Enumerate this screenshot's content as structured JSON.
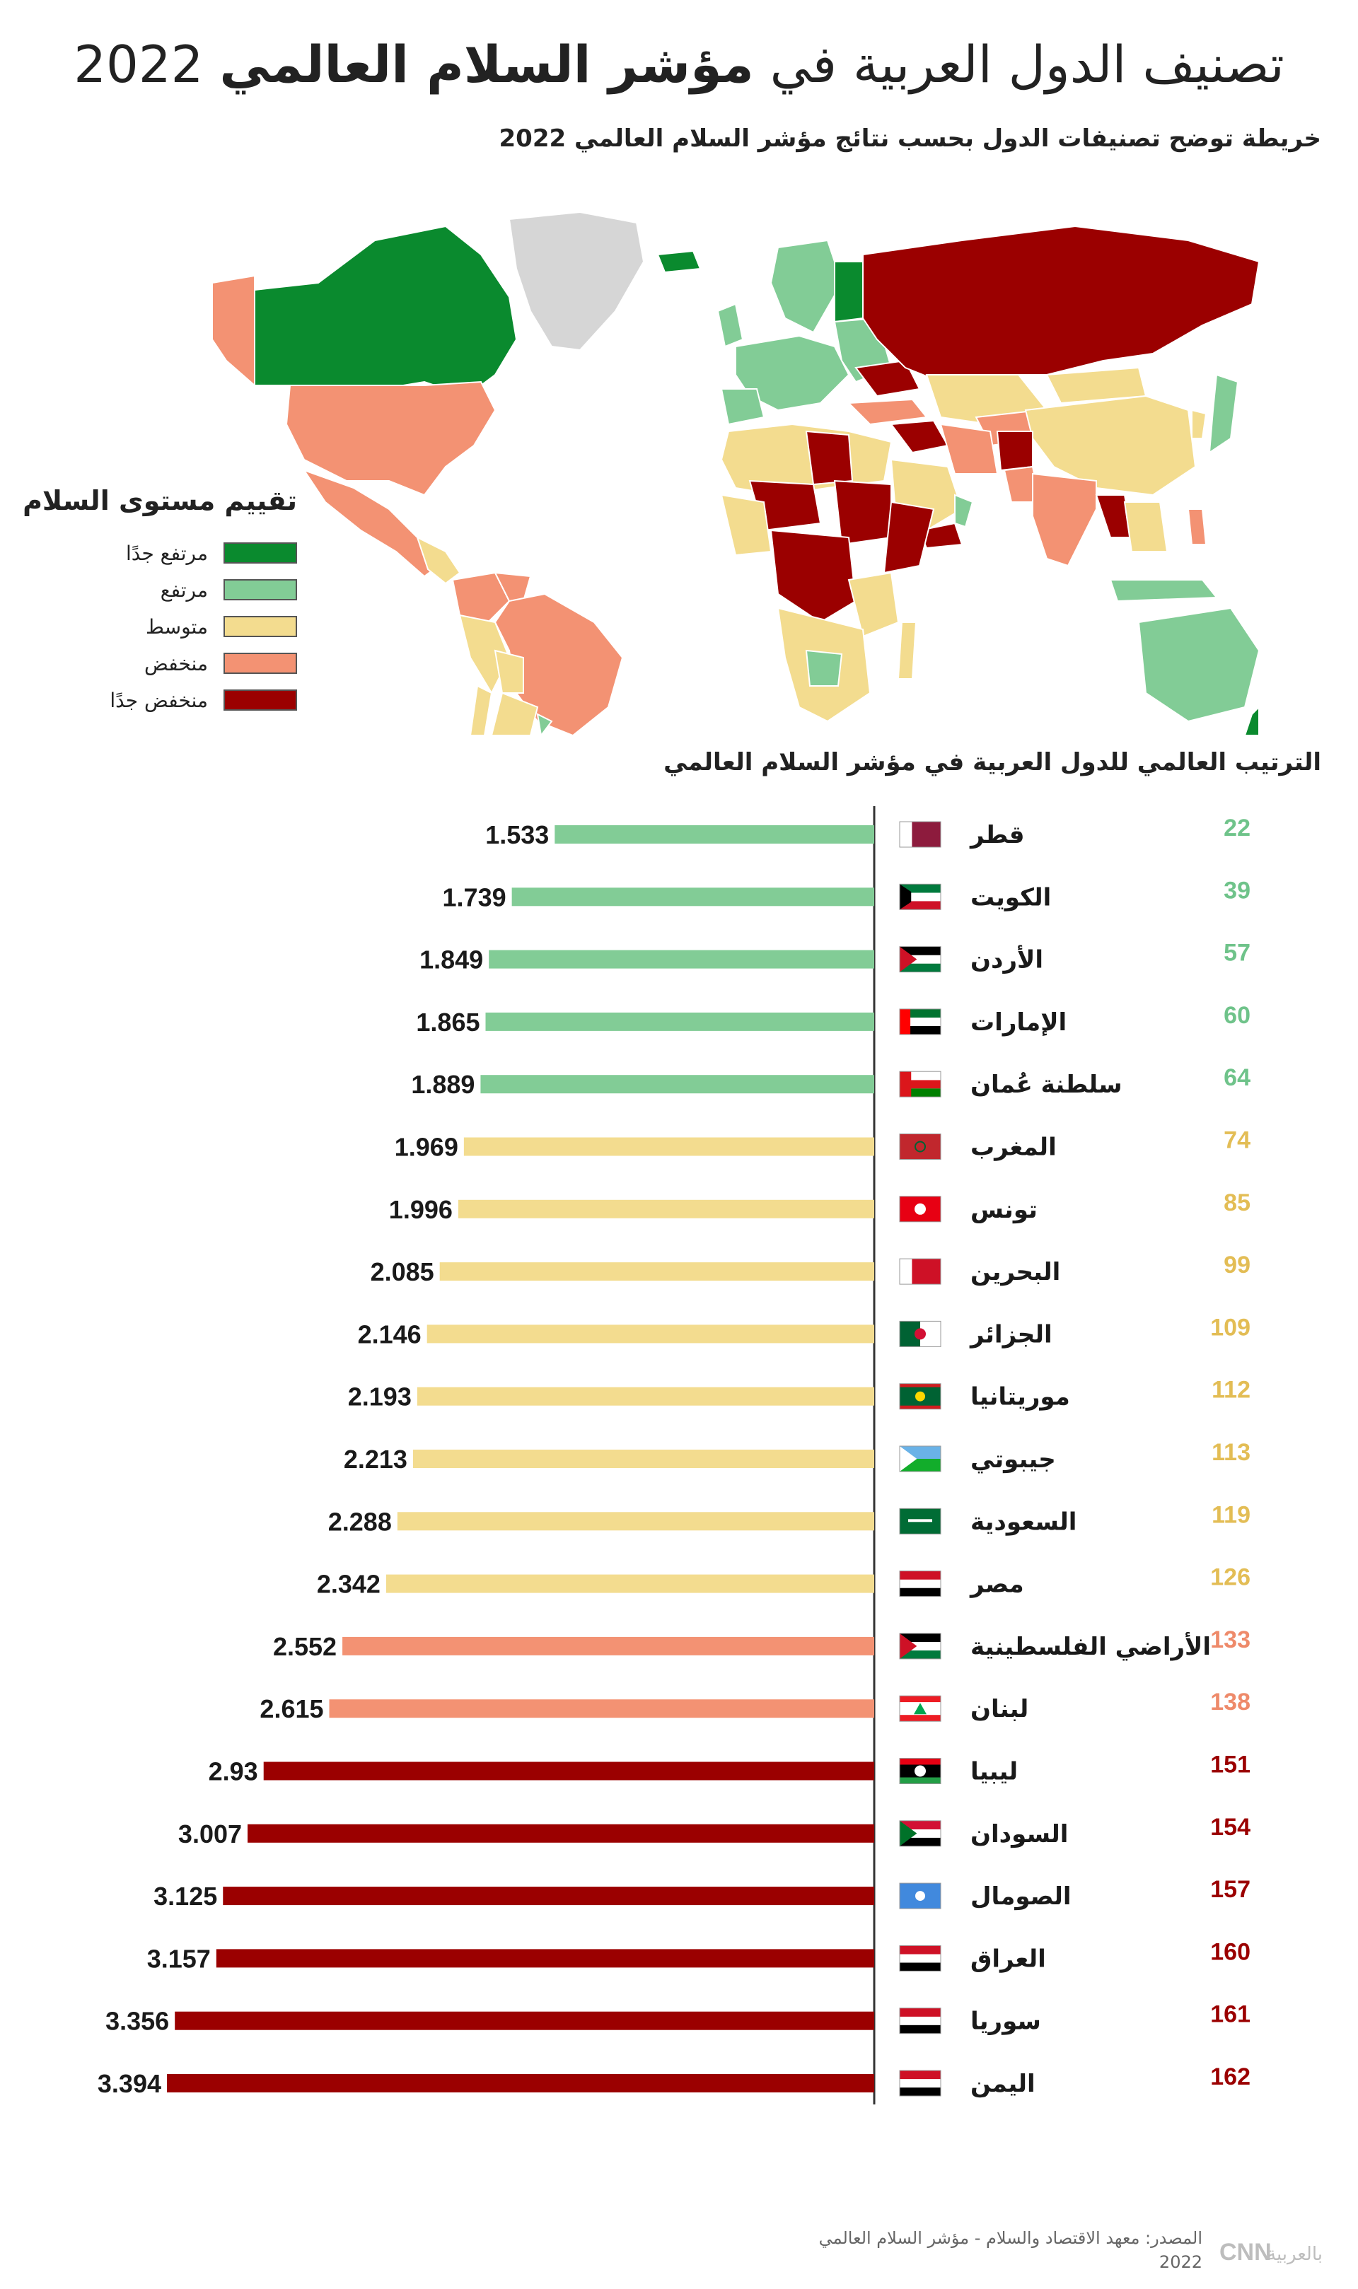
{
  "title": {
    "part1": "تصنيف الدول العربية في",
    "part2": "مؤشر السلام العالمي",
    "year": "2022"
  },
  "map_subtitle": "خريطة توضح تصنيفات الدول بحسب نتائج مؤشر السلام العالمي 2022",
  "legend": {
    "title": "تقييم مستوى السلام",
    "items": [
      {
        "label": "مرتفع جدًا",
        "color": "#0a8a2e"
      },
      {
        "label": "مرتفع",
        "color": "#82cc96"
      },
      {
        "label": "متوسط",
        "color": "#f3dc8f"
      },
      {
        "label": "منخفض",
        "color": "#f39273"
      },
      {
        "label": "منخفض جدًا",
        "color": "#9b0000"
      }
    ]
  },
  "ranking_title": "الترتيب العالمي للدول العربية في مؤشر السلام العالمي",
  "chart_data": {
    "type": "bar",
    "orientation": "horizontal",
    "categories": [
      "قطر",
      "الكويت",
      "الأردن",
      "الإمارات",
      "سلطنة عُمان",
      "المغرب",
      "تونس",
      "البحرين",
      "الجزائر",
      "موريتانيا",
      "جيبوتي",
      "السعودية",
      "مصر",
      "الأراضي الفلسطينية",
      "لبنان",
      "ليبيا",
      "السودان",
      "الصومال",
      "العراق",
      "سوريا",
      "اليمن"
    ],
    "values": [
      1.533,
      1.739,
      1.849,
      1.865,
      1.889,
      1.969,
      1.996,
      2.085,
      2.146,
      2.193,
      2.213,
      2.288,
      2.342,
      2.552,
      2.615,
      2.93,
      3.007,
      3.125,
      3.157,
      3.356,
      3.394
    ],
    "value_labels": [
      "1.533",
      "1.739",
      "1.849",
      "1.865",
      "1.889",
      "1.969",
      "1.996",
      "2.085",
      "2.146",
      "2.193",
      "2.213",
      "2.288",
      "2.342",
      "2.552",
      "2.615",
      "2.93",
      "3.007",
      "3.125",
      "3.157",
      "3.356",
      "3.394"
    ],
    "ranks": [
      "22",
      "39",
      "57",
      "60",
      "64",
      "74",
      "85",
      "99",
      "109",
      "112",
      "113",
      "119",
      "126",
      "133",
      "138",
      "151",
      "154",
      "157",
      "160",
      "161",
      "162"
    ],
    "levels": [
      "high",
      "high",
      "high",
      "high",
      "high",
      "medium",
      "medium",
      "medium",
      "medium",
      "medium",
      "medium",
      "medium",
      "medium",
      "low",
      "low",
      "very-low",
      "very-low",
      "very-low",
      "very-low",
      "very-low",
      "very-low"
    ],
    "flags": [
      "qatar",
      "kuwait",
      "jordan",
      "uae",
      "oman",
      "morocco",
      "tunisia",
      "bahrain",
      "algeria",
      "mauritania",
      "djibouti",
      "saudi",
      "egypt",
      "palestine",
      "lebanon",
      "libya",
      "sudan",
      "somalia",
      "iraq",
      "syria",
      "yemen"
    ],
    "level_colors": {
      "high": "#82cc96",
      "medium": "#f3dc8f",
      "low": "#f39273",
      "very-low": "#9b0000"
    },
    "rank_colors": {
      "high": "#6fc38a",
      "medium": "#e3bd55",
      "low": "#ee8a6a",
      "very-low": "#9b0000"
    },
    "xlim": [
      0,
      3.6
    ],
    "grid": false
  },
  "source": {
    "line1": "المصدر: معهد الاقتصاد والسلام - مؤشر السلام العالمي",
    "line2": "2022",
    "logo_text": "بالعربية"
  }
}
